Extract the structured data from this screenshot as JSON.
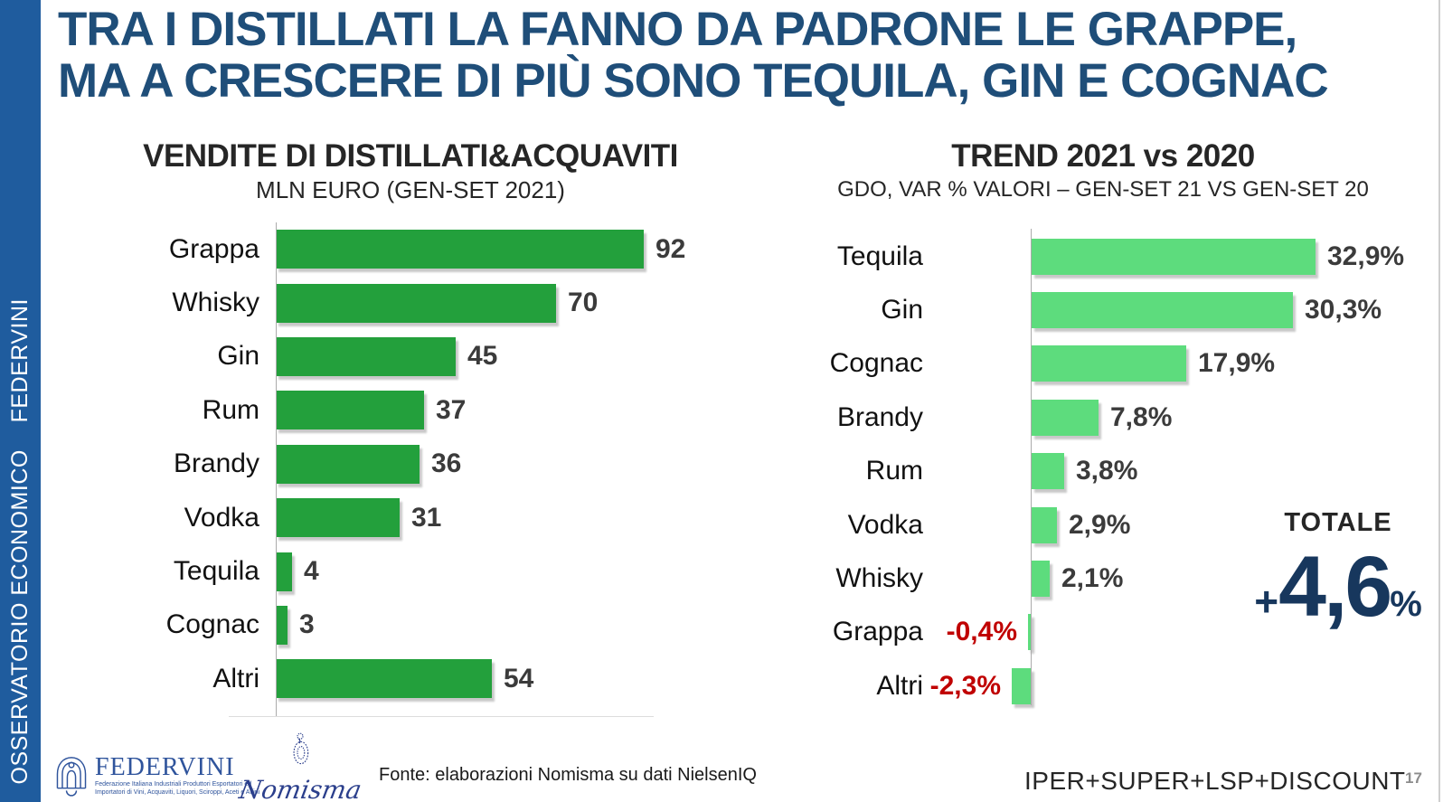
{
  "sidebar": {
    "vertical_text": "OSSERVATORIO ECONOMICO    FEDERVINI",
    "bg_color": "#1F5C9E"
  },
  "title": {
    "line1": "TRA I DISTILLATI LA FANNO DA PADRONE LE GRAPPE,",
    "line2": "MA A CRESCERE DI PIÙ SONO TEQUILA, GIN E COGNAC",
    "color": "#1F4E79"
  },
  "chart_data": [
    {
      "type": "bar",
      "orientation": "horizontal",
      "title": "VENDITE DI DISTILLATI&ACQUAVITI",
      "subtitle": "MLN EURO (GEN-SET 2021)",
      "categories": [
        "Grappa",
        "Whisky",
        "Gin",
        "Rum",
        "Brandy",
        "Vodka",
        "Tequila",
        "Cognac",
        "Altri"
      ],
      "values": [
        92,
        70,
        45,
        37,
        36,
        31,
        4,
        3,
        54
      ],
      "value_labels": [
        "92",
        "70",
        "45",
        "37",
        "36",
        "31",
        "4",
        "3",
        "54"
      ],
      "bar_color": "#23A03C",
      "xlim": [
        0,
        92
      ],
      "grid": false,
      "legend": "none"
    },
    {
      "type": "bar",
      "orientation": "horizontal",
      "title": "TREND 2021 vs 2020",
      "subtitle": "GDO, VAR % VALORI – GEN-SET 21 VS GEN-SET 20",
      "categories": [
        "Tequila",
        "Gin",
        "Cognac",
        "Brandy",
        "Rum",
        "Vodka",
        "Whisky",
        "Grappa",
        "Altri"
      ],
      "values": [
        32.9,
        30.3,
        17.9,
        7.8,
        3.8,
        2.9,
        2.1,
        -0.4,
        -2.3
      ],
      "value_labels": [
        "32,9%",
        "30,3%",
        "17,9%",
        "7,8%",
        "3,8%",
        "2,9%",
        "2,1%",
        "-0,4%",
        "-2,3%"
      ],
      "bar_color": "#5DDC7D",
      "negative_label_color": "#C00000",
      "xlim": [
        -3,
        33
      ],
      "grid": false,
      "legend": "none"
    }
  ],
  "totale": {
    "label": "TOTALE",
    "plus": "+",
    "value": "4,6",
    "percent": "%",
    "color": "#17375D"
  },
  "footer": {
    "fonte": "Fonte: elaborazioni Nomisma su dati NielsenIQ",
    "coverage": "IPER+SUPER+LSP+DISCOUNT",
    "page_number": "17"
  },
  "logos": {
    "federvini": {
      "name": "FEDERVINI",
      "tagline_line1": "Federazione Italiana Industriali Produttori Esportatori ed",
      "tagline_line2": "Importatori di Vini, Acquaviti, Liquori, Sciroppi, Aceti e Affini"
    },
    "nomisma": {
      "name": "Nomisma"
    }
  }
}
